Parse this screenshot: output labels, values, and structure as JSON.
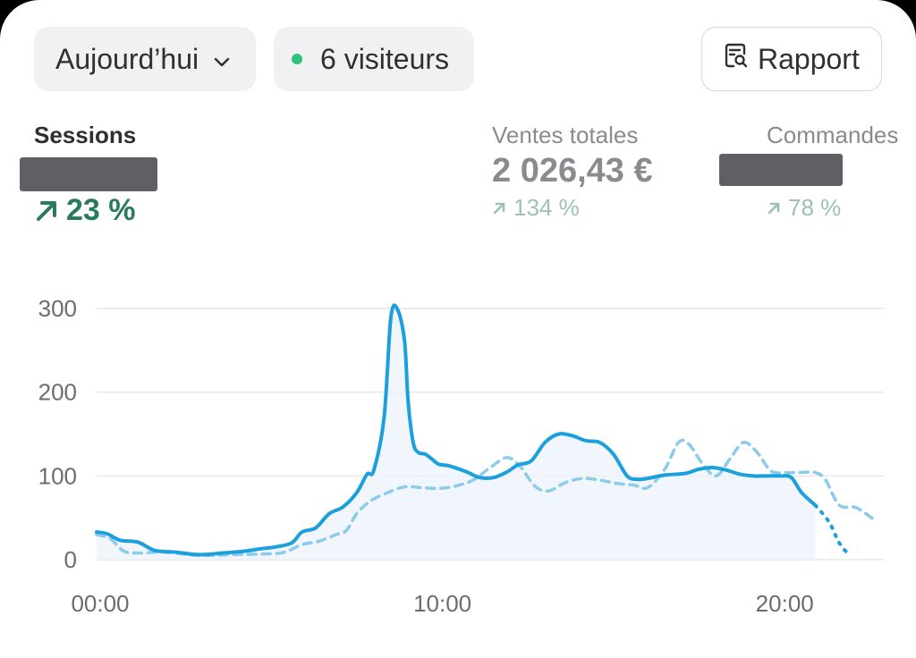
{
  "header": {
    "date_label": "Aujourd’hui",
    "visitors_label": "6 visiteurs",
    "report_label": "Rapport",
    "live_color": "#2ec27e"
  },
  "metrics": {
    "sessions": {
      "label": "Sessions",
      "change": "23 %"
    },
    "sales": {
      "label": "Ventes totales",
      "value": "2 026,43 €",
      "change": "134 %"
    },
    "orders": {
      "label": "Commandes",
      "change": "78 %"
    }
  },
  "colors": {
    "current": "#1ba0dc",
    "comparison": "#8ccbea",
    "positive": "#2a7a5d",
    "positive_muted": "#9cc2b5",
    "redaction": "#5f5f64"
  },
  "chart_data": {
    "type": "line",
    "title": "",
    "xlabel": "",
    "ylabel": "",
    "xlim": [
      0,
      23
    ],
    "ylim": [
      0,
      300
    ],
    "yticks": [
      0,
      100,
      200,
      300
    ],
    "ytick_labels": [
      "0",
      "100",
      "200",
      "300"
    ],
    "xticks": [
      0,
      10,
      20
    ],
    "xtick_labels": [
      "00:00",
      "10:00",
      "20:00"
    ],
    "grid": true,
    "legend": "none",
    "series": [
      {
        "style": "solid",
        "x": [
          0,
          0.3,
          0.7,
          1.2,
          1.7,
          2.3,
          3,
          3.7,
          4.3,
          4.8,
          5.2,
          5.7,
          6,
          6.4,
          6.8,
          7.2,
          7.6,
          7.9,
          8.1,
          8.4,
          8.6,
          8.8,
          9.0,
          9.1,
          9.25,
          9.4,
          9.6,
          9.8,
          10.0,
          10.3,
          10.8,
          11.2,
          11.6,
          12,
          12.3,
          12.7,
          13.1,
          13.5,
          13.9,
          14.3,
          14.7,
          15.1,
          15.5,
          15.8,
          16.1,
          16.6,
          17.2,
          17.6,
          18.0,
          18.4,
          18.8,
          19.2,
          19.6,
          20.0,
          20.3,
          20.6,
          21.0
        ],
        "y": [
          33,
          31,
          23,
          21,
          11,
          9,
          6,
          8,
          10,
          13,
          15,
          20,
          33,
          38,
          55,
          63,
          80,
          102,
          107,
          170,
          290,
          298,
          260,
          190,
          140,
          128,
          126,
          120,
          114,
          112,
          105,
          98,
          98,
          105,
          113,
          118,
          140,
          150,
          148,
          142,
          140,
          126,
          100,
          96,
          97,
          101,
          103,
          108,
          110,
          107,
          102,
          100,
          100,
          100,
          98,
          80,
          65
        ]
      },
      {
        "style": "dotted",
        "x": [
          21.0,
          21.4,
          21.7,
          22.0
        ],
        "y": [
          65,
          45,
          20,
          5
        ]
      },
      {
        "style": "dashed",
        "x": [
          0,
          0.4,
          0.8,
          1.3,
          2,
          3,
          4,
          5,
          5.5,
          6,
          6.5,
          7,
          7.3,
          7.6,
          8,
          8.5,
          9,
          9.5,
          10,
          10.5,
          11,
          11.5,
          12,
          12.4,
          12.8,
          13.2,
          13.7,
          14.2,
          14.7,
          15.2,
          15.7,
          16.1,
          16.6,
          17,
          17.3,
          17.7,
          18.1,
          18.5,
          18.9,
          19.3,
          19.7,
          20.1,
          20.5,
          21,
          21.3,
          21.7,
          22.2,
          22.8
        ],
        "y": [
          30,
          25,
          10,
          8,
          9,
          5,
          6,
          7,
          9,
          18,
          22,
          30,
          35,
          55,
          70,
          80,
          87,
          86,
          85,
          88,
          95,
          110,
          122,
          110,
          88,
          82,
          92,
          97,
          95,
          91,
          89,
          86,
          108,
          140,
          138,
          115,
          100,
          120,
          140,
          128,
          106,
          104,
          104,
          104,
          95,
          65,
          62,
          45
        ]
      }
    ]
  }
}
